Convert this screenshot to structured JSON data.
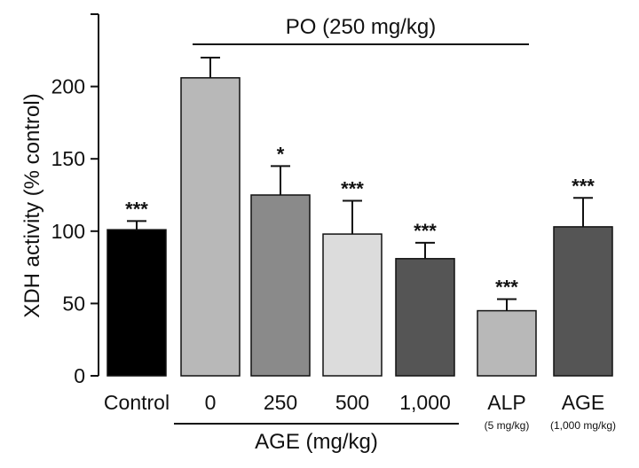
{
  "chart_data": {
    "type": "bar",
    "title": "",
    "xlabel": "",
    "ylabel": "XDH activity (% control)",
    "ylim": [
      0,
      250
    ],
    "yticks": [
      0,
      50,
      100,
      150,
      200
    ],
    "grid": false,
    "categories": [
      "Control",
      "0",
      "250",
      "500",
      "1,000",
      "ALP",
      "AGE"
    ],
    "sublabels": [
      "",
      "",
      "",
      "",
      "",
      "(5 mg/kg)",
      "(1,000 mg/kg)"
    ],
    "values": [
      101,
      206,
      125,
      98,
      81,
      45,
      103
    ],
    "errors": [
      6,
      14,
      20,
      23,
      11,
      8,
      20
    ],
    "significance": [
      "***",
      "",
      "*",
      "***",
      "***",
      "***",
      "***"
    ],
    "colors": [
      "#000000",
      "#b8b8b8",
      "#8a8a8a",
      "#dcdcdc",
      "#555555",
      "#b8b8b8",
      "#555555"
    ],
    "annotations": {
      "top_group": {
        "label": "PO (250 mg/kg)",
        "from": 1,
        "to": 5
      },
      "bottom_group": {
        "label": "AGE (mg/kg)",
        "from": 1,
        "to": 4
      }
    }
  }
}
